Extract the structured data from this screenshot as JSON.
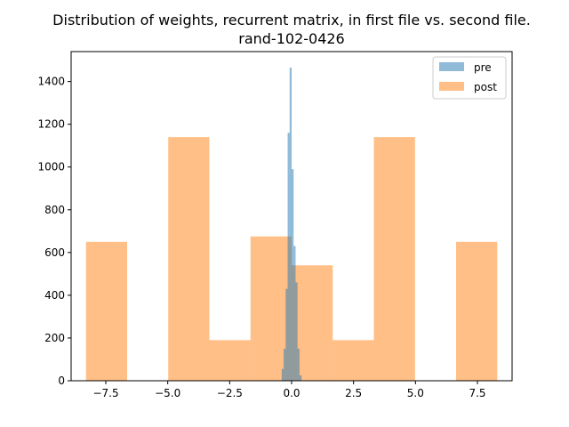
{
  "chart_data": {
    "type": "histogram",
    "title": "Distribution of weights, recurrent matrix, in first file vs. second file.",
    "subtitle": "rand-102-0426",
    "xlabel": "",
    "ylabel": "",
    "xlim": [
      -8.9,
      8.9
    ],
    "ylim": [
      0,
      1540
    ],
    "xticks": [
      -7.5,
      -5.0,
      -2.5,
      0.0,
      2.5,
      5.0,
      7.5
    ],
    "xtick_labels": [
      "−7.5",
      "−5.0",
      "−2.5",
      "0.0",
      "2.5",
      "5.0",
      "7.5"
    ],
    "yticks": [
      0,
      200,
      400,
      600,
      800,
      1000,
      1200,
      1400
    ],
    "ytick_labels": [
      "0",
      "200",
      "400",
      "600",
      "800",
      "1000",
      "1200",
      "1400"
    ],
    "grid": false,
    "legend_position": "upper-right",
    "series": [
      {
        "name": "pre",
        "color": "#1f77b4",
        "alpha": 0.5,
        "bin_edges": [
          -0.4,
          -0.32,
          -0.24,
          -0.16,
          -0.08,
          0.0,
          0.08,
          0.16,
          0.24,
          0.32,
          0.4
        ],
        "counts": [
          55,
          150,
          430,
          1160,
          1465,
          990,
          630,
          460,
          150,
          25
        ]
      },
      {
        "name": "post",
        "color": "#ff7f0e",
        "alpha": 0.5,
        "bin_edges": [
          -8.3,
          -6.64,
          -4.98,
          -3.32,
          -1.66,
          0.0,
          1.66,
          3.32,
          4.98,
          6.64,
          8.3
        ],
        "counts": [
          650,
          0,
          1140,
          190,
          675,
          540,
          190,
          1140,
          0,
          650
        ]
      }
    ]
  }
}
